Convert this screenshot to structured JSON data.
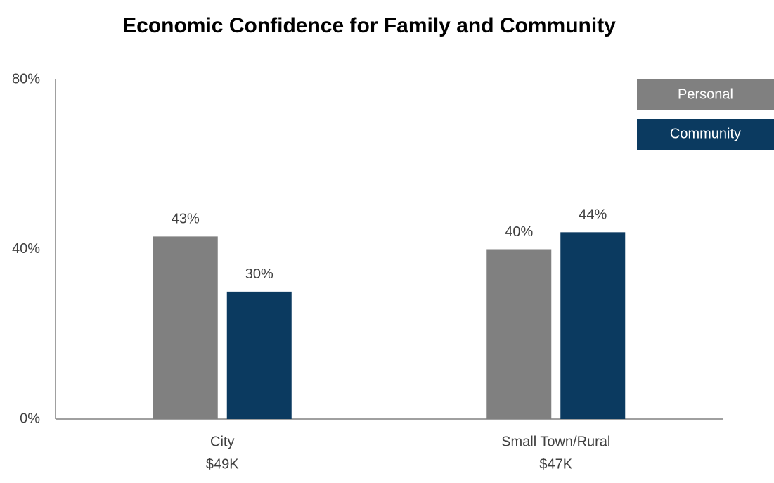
{
  "chart_data": {
    "type": "bar",
    "title": "Economic Confidence for Family and Community",
    "categories": [
      [
        "City",
        "$49K"
      ],
      [
        "Small Town/Rural",
        "$47K"
      ]
    ],
    "series": [
      {
        "name": "Personal",
        "color": "#808080",
        "values": [
          43,
          40
        ],
        "value_labels": [
          "43%",
          "40%"
        ]
      },
      {
        "name": "Community",
        "color": "#0b3a60",
        "values": [
          30,
          44
        ],
        "value_labels": [
          "30%",
          "44%"
        ]
      }
    ],
    "ylim": [
      0,
      80
    ],
    "yticks": [
      {
        "value": 0,
        "label": "0%"
      },
      {
        "value": 40,
        "label": "40%"
      },
      {
        "value": 80,
        "label": "80%"
      }
    ],
    "grid": false,
    "legend": "top-right"
  }
}
